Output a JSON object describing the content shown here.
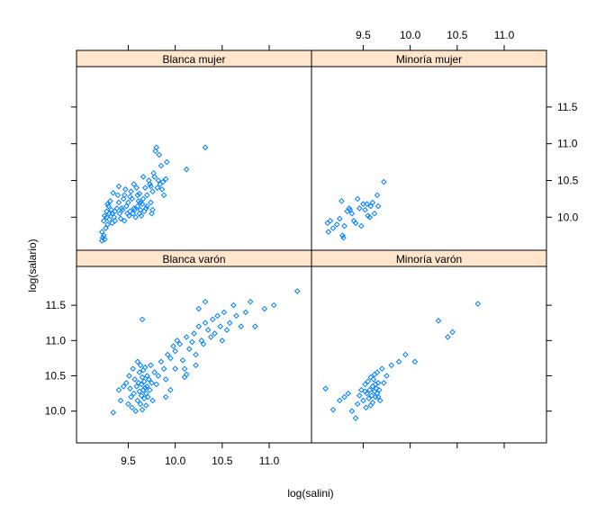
{
  "chart_data": {
    "type": "scatter",
    "layout": "trellis-2x2",
    "xlabel": "log(salini)",
    "ylabel": "log(salario)",
    "xlim": [
      8.95,
      11.45
    ],
    "ylim": [
      9.55,
      12.05
    ],
    "xticks": [
      9.5,
      10.0,
      10.5,
      11.0
    ],
    "yticks": [
      10.0,
      10.5,
      11.0,
      11.5
    ],
    "colors": {
      "point": "#0080ff",
      "strip": "#ffe5cc",
      "frame": "#000000"
    },
    "marker": "open-diamond",
    "panels": [
      {
        "label": "Blanca mujer",
        "row": "top",
        "col": "left",
        "points": [
          [
            9.22,
            9.68
          ],
          [
            9.23,
            9.72
          ],
          [
            9.24,
            9.75
          ],
          [
            9.25,
            9.7
          ],
          [
            9.22,
            9.8
          ],
          [
            9.26,
            9.85
          ],
          [
            9.28,
            9.9
          ],
          [
            9.24,
            9.95
          ],
          [
            9.27,
            10.0
          ],
          [
            9.3,
            10.05
          ],
          [
            9.32,
            10.1
          ],
          [
            9.25,
            10.02
          ],
          [
            9.29,
            10.15
          ],
          [
            9.33,
            9.92
          ],
          [
            9.35,
            10.0
          ],
          [
            9.36,
            10.08
          ],
          [
            9.38,
            10.12
          ],
          [
            9.4,
            10.2
          ],
          [
            9.41,
            10.05
          ],
          [
            9.42,
            9.98
          ],
          [
            9.44,
            10.1
          ],
          [
            9.45,
            10.25
          ],
          [
            9.46,
            10.3
          ],
          [
            9.48,
            10.15
          ],
          [
            9.5,
            10.2
          ],
          [
            9.51,
            10.02
          ],
          [
            9.52,
            10.08
          ],
          [
            9.53,
            10.35
          ],
          [
            9.55,
            10.05
          ],
          [
            9.56,
            10.12
          ],
          [
            9.58,
            10.0
          ],
          [
            9.6,
            10.15
          ],
          [
            9.61,
            10.22
          ],
          [
            9.62,
            10.05
          ],
          [
            9.63,
            10.1
          ],
          [
            9.64,
            10.02
          ],
          [
            9.65,
            10.18
          ],
          [
            9.66,
            10.25
          ],
          [
            9.67,
            10.08
          ],
          [
            9.68,
            10.4
          ],
          [
            9.69,
            10.12
          ],
          [
            9.7,
            10.3
          ],
          [
            9.72,
            10.5
          ],
          [
            9.73,
            10.45
          ],
          [
            9.74,
            10.2
          ],
          [
            9.75,
            10.05
          ],
          [
            9.76,
            10.35
          ],
          [
            9.77,
            10.6
          ],
          [
            9.78,
            10.55
          ],
          [
            9.79,
            10.9
          ],
          [
            9.8,
            10.95
          ],
          [
            9.81,
            10.4
          ],
          [
            9.82,
            10.5
          ],
          [
            9.83,
            10.85
          ],
          [
            9.84,
            10.45
          ],
          [
            9.85,
            10.7
          ],
          [
            9.86,
            10.38
          ],
          [
            9.88,
            10.3
          ],
          [
            9.9,
            10.52
          ],
          [
            9.91,
            10.75
          ],
          [
            9.6,
            10.3
          ],
          [
            9.56,
            10.45
          ],
          [
            9.54,
            10.25
          ],
          [
            9.47,
            10.38
          ],
          [
            9.39,
            10.3
          ],
          [
            9.34,
            10.33
          ],
          [
            9.31,
            10.22
          ],
          [
            9.28,
            10.18
          ],
          [
            9.3,
            9.97
          ],
          [
            9.36,
            9.95
          ],
          [
            9.43,
            10.12
          ],
          [
            9.49,
            10.05
          ],
          [
            9.57,
            10.1
          ],
          [
            9.7,
            10.15
          ],
          [
            9.74,
            10.42
          ],
          [
            9.76,
            10.1
          ],
          [
            9.63,
            10.2
          ],
          [
            9.59,
            10.4
          ],
          [
            10.12,
            10.65
          ],
          [
            10.32,
            10.95
          ],
          [
            9.46,
            9.95
          ],
          [
            9.33,
            10.05
          ],
          [
            9.27,
            10.08
          ],
          [
            9.4,
            10.42
          ],
          [
            9.62,
            10.32
          ],
          [
            9.52,
            10.28
          ],
          [
            9.66,
            10.55
          ],
          [
            9.87,
            10.48
          ]
        ]
      },
      {
        "label": "Minoría mujer",
        "row": "top",
        "col": "right",
        "points": [
          [
            9.12,
            9.92
          ],
          [
            9.13,
            9.8
          ],
          [
            9.15,
            9.95
          ],
          [
            9.18,
            9.85
          ],
          [
            9.22,
            9.9
          ],
          [
            9.25,
            9.98
          ],
          [
            9.27,
            10.22
          ],
          [
            9.28,
            9.75
          ],
          [
            9.29,
            9.72
          ],
          [
            9.33,
            10.08
          ],
          [
            9.35,
            10.12
          ],
          [
            9.38,
            10.05
          ],
          [
            9.4,
            9.95
          ],
          [
            9.42,
            9.92
          ],
          [
            9.44,
            10.25
          ],
          [
            9.46,
            10.12
          ],
          [
            9.5,
            10.18
          ],
          [
            9.52,
            10.1
          ],
          [
            9.55,
            10.02
          ],
          [
            9.57,
            10.0
          ],
          [
            9.58,
            10.15
          ],
          [
            9.6,
            10.2
          ],
          [
            9.62,
            10.05
          ],
          [
            9.65,
            10.3
          ],
          [
            9.66,
            10.15
          ],
          [
            9.72,
            10.48
          ],
          [
            9.3,
            9.88
          ],
          [
            9.48,
            9.88
          ],
          [
            9.54,
            10.18
          ],
          [
            9.36,
            10.1
          ]
        ]
      },
      {
        "label": "Blanca varón",
        "row": "bottom",
        "col": "left",
        "points": [
          [
            9.34,
            9.98
          ],
          [
            9.4,
            10.3
          ],
          [
            9.42,
            10.15
          ],
          [
            9.45,
            10.35
          ],
          [
            9.48,
            10.4
          ],
          [
            9.5,
            10.1
          ],
          [
            9.51,
            10.5
          ],
          [
            9.52,
            10.32
          ],
          [
            9.53,
            10.2
          ],
          [
            9.54,
            10.05
          ],
          [
            9.55,
            10.6
          ],
          [
            9.56,
            10.25
          ],
          [
            9.57,
            10.45
          ],
          [
            9.58,
            10.0
          ],
          [
            9.59,
            10.35
          ],
          [
            9.6,
            10.7
          ],
          [
            9.6,
            10.15
          ],
          [
            9.61,
            10.4
          ],
          [
            9.62,
            10.55
          ],
          [
            9.62,
            10.28
          ],
          [
            9.63,
            10.1
          ],
          [
            9.63,
            10.65
          ],
          [
            9.64,
            10.38
          ],
          [
            9.64,
            10.22
          ],
          [
            9.65,
            10.48
          ],
          [
            9.65,
            10.02
          ],
          [
            9.66,
            10.3
          ],
          [
            9.66,
            10.58
          ],
          [
            9.67,
            10.18
          ],
          [
            9.67,
            10.42
          ],
          [
            9.68,
            10.33
          ],
          [
            9.68,
            10.62
          ],
          [
            9.69,
            10.25
          ],
          [
            9.69,
            10.08
          ],
          [
            9.7,
            10.5
          ],
          [
            9.7,
            10.35
          ],
          [
            9.71,
            10.2
          ],
          [
            9.72,
            10.45
          ],
          [
            9.73,
            10.3
          ],
          [
            9.74,
            10.65
          ],
          [
            9.75,
            10.4
          ],
          [
            9.76,
            10.15
          ],
          [
            9.78,
            10.55
          ],
          [
            9.8,
            10.38
          ],
          [
            9.82,
            10.5
          ],
          [
            9.85,
            10.7
          ],
          [
            9.88,
            10.6
          ],
          [
            9.9,
            10.45
          ],
          [
            9.92,
            10.8
          ],
          [
            9.95,
            10.75
          ],
          [
            9.98,
            10.92
          ],
          [
            10.0,
            10.85
          ],
          [
            10.02,
            11.0
          ],
          [
            10.05,
            10.95
          ],
          [
            10.08,
            10.72
          ],
          [
            10.1,
            10.6
          ],
          [
            10.12,
            11.05
          ],
          [
            10.15,
            10.88
          ],
          [
            10.18,
            10.98
          ],
          [
            10.2,
            11.1
          ],
          [
            10.22,
            10.8
          ],
          [
            10.25,
            11.2
          ],
          [
            10.28,
            11.0
          ],
          [
            10.3,
            10.95
          ],
          [
            10.32,
            11.25
          ],
          [
            10.35,
            11.15
          ],
          [
            10.38,
            11.05
          ],
          [
            10.4,
            11.3
          ],
          [
            10.42,
            11.1
          ],
          [
            10.45,
            11.35
          ],
          [
            10.48,
            11.2
          ],
          [
            10.5,
            11.0
          ],
          [
            10.52,
            11.4
          ],
          [
            10.55,
            11.15
          ],
          [
            10.58,
            11.25
          ],
          [
            10.62,
            11.5
          ],
          [
            10.65,
            11.35
          ],
          [
            10.7,
            11.2
          ],
          [
            10.75,
            11.4
          ],
          [
            10.8,
            11.55
          ],
          [
            10.85,
            11.2
          ],
          [
            10.95,
            11.45
          ],
          [
            11.05,
            11.5
          ],
          [
            11.3,
            11.7
          ],
          [
            10.32,
            11.55
          ],
          [
            9.65,
            11.3
          ],
          [
            10.0,
            10.6
          ],
          [
            9.95,
            10.3
          ],
          [
            10.1,
            10.48
          ],
          [
            10.22,
            10.65
          ],
          [
            10.25,
            11.45
          ],
          [
            10.12,
            10.52
          ],
          [
            9.9,
            10.2
          ]
        ]
      },
      {
        "label": "Minoría varón",
        "row": "bottom",
        "col": "right",
        "points": [
          [
            9.1,
            10.32
          ],
          [
            9.18,
            10.02
          ],
          [
            9.25,
            10.15
          ],
          [
            9.3,
            10.2
          ],
          [
            9.34,
            10.25
          ],
          [
            9.38,
            10.0
          ],
          [
            9.42,
            9.9
          ],
          [
            9.44,
            10.1
          ],
          [
            9.46,
            10.22
          ],
          [
            9.48,
            10.3
          ],
          [
            9.5,
            10.15
          ],
          [
            9.52,
            10.38
          ],
          [
            9.53,
            10.05
          ],
          [
            9.54,
            10.25
          ],
          [
            9.55,
            10.42
          ],
          [
            9.56,
            10.18
          ],
          [
            9.57,
            10.3
          ],
          [
            9.58,
            10.48
          ],
          [
            9.59,
            10.22
          ],
          [
            9.6,
            10.35
          ],
          [
            9.6,
            10.12
          ],
          [
            9.61,
            10.45
          ],
          [
            9.62,
            10.28
          ],
          [
            9.62,
            10.52
          ],
          [
            9.63,
            10.2
          ],
          [
            9.63,
            10.38
          ],
          [
            9.64,
            10.32
          ],
          [
            9.65,
            10.25
          ],
          [
            9.65,
            10.55
          ],
          [
            9.66,
            10.4
          ],
          [
            9.67,
            10.3
          ],
          [
            9.68,
            10.15
          ],
          [
            9.7,
            10.6
          ],
          [
            9.72,
            10.4
          ],
          [
            9.75,
            10.5
          ],
          [
            9.8,
            10.65
          ],
          [
            9.88,
            10.7
          ],
          [
            9.95,
            10.8
          ],
          [
            10.05,
            10.7
          ],
          [
            10.3,
            11.28
          ],
          [
            10.4,
            11.05
          ],
          [
            10.45,
            11.12
          ],
          [
            10.72,
            11.52
          ],
          [
            9.52,
            10.28
          ],
          [
            9.58,
            10.08
          ],
          [
            9.66,
            10.2
          ]
        ]
      }
    ]
  }
}
